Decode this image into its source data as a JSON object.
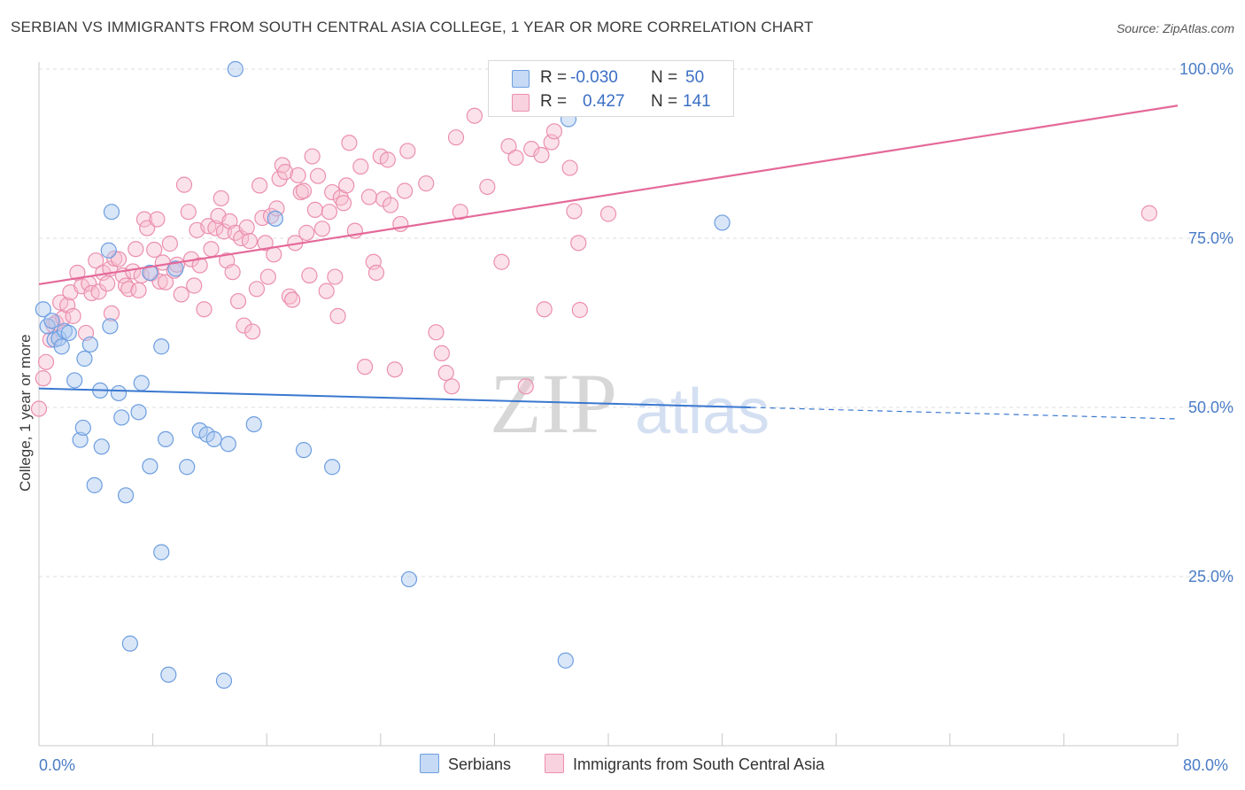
{
  "header": {
    "title": "SERBIAN VS IMMIGRANTS FROM SOUTH CENTRAL ASIA COLLEGE, 1 YEAR OR MORE CORRELATION CHART",
    "source": "Source: ZipAtlas.com"
  },
  "watermark": {
    "zip": "ZIP",
    "atlas": "atlas"
  },
  "legend_top": {
    "rows": [
      {
        "r_label": "R =",
        "r_value": "-0.030",
        "n_label": "N =",
        "n_value": "50"
      },
      {
        "r_label": "R =",
        "r_value": "0.427",
        "n_label": "N =",
        "n_value": "141"
      }
    ]
  },
  "legend_bottom": {
    "serbians": "Serbians",
    "immigrants": "Immigrants from South Central Asia"
  },
  "colors": {
    "blue_fill": "#aac8f0",
    "blue_stroke": "#6d9ee0",
    "blue_line": "#3a78d0",
    "pink_fill": "#f6bfd1",
    "pink_stroke": "#eb8fae",
    "pink_line": "#e4699a",
    "tick_text": "#4a7cc7",
    "grid": "#dcdcdc"
  },
  "chart_data": {
    "type": "scatter",
    "title": "SERBIAN VS IMMIGRANTS FROM SOUTH CENTRAL ASIA COLLEGE, 1 YEAR OR MORE CORRELATION CHART",
    "xlabel": "",
    "ylabel": "College, 1 year or more",
    "xlim": [
      0,
      80
    ],
    "ylim": [
      0,
      105
    ],
    "x_tick_labels": [
      "0.0%",
      "80.0%"
    ],
    "y_tick_labels": [
      "100.0%",
      "75.0%",
      "50.0%",
      "25.0%"
    ],
    "y_ticks": [
      100,
      75,
      50,
      25
    ],
    "grid": true,
    "legend_placement": "top-center",
    "series": [
      {
        "name": "Serbians",
        "r": -0.03,
        "n": 50,
        "trend": {
          "x_start": 0,
          "y_start": 52.8,
          "x_solid_end": 50,
          "y_solid_end": 50.0,
          "x_end": 80,
          "y_end": 48.3
        },
        "points": [
          [
            0.3,
            64.5
          ],
          [
            0.6,
            62.0
          ],
          [
            0.9,
            62.8
          ],
          [
            1.1,
            60.0
          ],
          [
            1.4,
            60.2
          ],
          [
            1.6,
            59.0
          ],
          [
            1.8,
            61.3
          ],
          [
            2.1,
            61.0
          ],
          [
            2.5,
            54.0
          ],
          [
            2.9,
            45.2
          ],
          [
            3.1,
            47.0
          ],
          [
            3.2,
            57.2
          ],
          [
            3.6,
            59.3
          ],
          [
            3.9,
            38.5
          ],
          [
            4.3,
            52.5
          ],
          [
            4.4,
            44.2
          ],
          [
            4.9,
            73.2
          ],
          [
            5.1,
            78.9
          ],
          [
            5.0,
            62.0
          ],
          [
            5.6,
            52.1
          ],
          [
            5.8,
            48.5
          ],
          [
            6.1,
            37.0
          ],
          [
            6.4,
            15.1
          ],
          [
            7.0,
            49.3
          ],
          [
            7.2,
            53.6
          ],
          [
            7.8,
            69.9
          ],
          [
            7.8,
            41.3
          ],
          [
            8.6,
            59.0
          ],
          [
            8.6,
            28.6
          ],
          [
            8.9,
            45.3
          ],
          [
            9.1,
            10.5
          ],
          [
            9.6,
            70.5
          ],
          [
            10.4,
            41.2
          ],
          [
            11.3,
            46.6
          ],
          [
            11.8,
            46.0
          ],
          [
            12.3,
            45.3
          ],
          [
            13.0,
            9.6
          ],
          [
            13.3,
            44.6
          ],
          [
            13.8,
            100.0
          ],
          [
            15.1,
            47.5
          ],
          [
            16.6,
            77.9
          ],
          [
            18.6,
            43.7
          ],
          [
            20.6,
            41.2
          ],
          [
            26.0,
            24.6
          ],
          [
            37.0,
            12.6
          ],
          [
            37.2,
            92.6
          ],
          [
            48.0,
            77.3
          ]
        ]
      },
      {
        "name": "Immigrants from South Central Asia",
        "r": 0.427,
        "n": 141,
        "trend": {
          "x_start": 0,
          "y_start": 68.2,
          "x_end": 80,
          "y_end": 94.6
        },
        "points": [
          [
            0.0,
            49.8
          ],
          [
            0.3,
            54.3
          ],
          [
            0.5,
            56.7
          ],
          [
            0.8,
            60.0
          ],
          [
            1.0,
            62.2
          ],
          [
            1.2,
            62.5
          ],
          [
            1.5,
            65.5
          ],
          [
            1.7,
            63.2
          ],
          [
            2.0,
            65.1
          ],
          [
            2.2,
            67.0
          ],
          [
            2.4,
            63.5
          ],
          [
            2.7,
            69.9
          ],
          [
            3.0,
            67.9
          ],
          [
            3.3,
            61.0
          ],
          [
            3.5,
            68.3
          ],
          [
            3.7,
            66.9
          ],
          [
            4.0,
            71.7
          ],
          [
            4.2,
            67.1
          ],
          [
            4.5,
            69.9
          ],
          [
            4.8,
            68.3
          ],
          [
            5.0,
            70.5
          ],
          [
            5.1,
            63.9
          ],
          [
            5.3,
            72.0
          ],
          [
            5.6,
            71.9
          ],
          [
            5.9,
            69.5
          ],
          [
            6.1,
            68.0
          ],
          [
            6.3,
            67.5
          ],
          [
            6.6,
            70.1
          ],
          [
            6.8,
            73.4
          ],
          [
            7.0,
            67.3
          ],
          [
            7.2,
            69.5
          ],
          [
            7.4,
            77.8
          ],
          [
            7.6,
            76.5
          ],
          [
            7.9,
            69.8
          ],
          [
            8.1,
            73.3
          ],
          [
            8.3,
            77.8
          ],
          [
            8.5,
            68.6
          ],
          [
            8.7,
            71.4
          ],
          [
            8.9,
            68.5
          ],
          [
            9.2,
            74.2
          ],
          [
            9.5,
            70.2
          ],
          [
            9.7,
            71.1
          ],
          [
            10.0,
            66.7
          ],
          [
            10.2,
            82.9
          ],
          [
            10.5,
            78.9
          ],
          [
            10.7,
            71.9
          ],
          [
            10.9,
            68.0
          ],
          [
            11.1,
            76.2
          ],
          [
            11.3,
            71.0
          ],
          [
            11.6,
            64.5
          ],
          [
            11.9,
            76.8
          ],
          [
            12.1,
            73.4
          ],
          [
            12.4,
            76.5
          ],
          [
            12.6,
            78.3
          ],
          [
            12.8,
            80.9
          ],
          [
            13.0,
            76.0
          ],
          [
            13.2,
            71.7
          ],
          [
            13.4,
            77.5
          ],
          [
            13.6,
            70.0
          ],
          [
            13.8,
            75.8
          ],
          [
            14.0,
            65.7
          ],
          [
            14.2,
            75.0
          ],
          [
            14.4,
            62.1
          ],
          [
            14.6,
            76.6
          ],
          [
            14.8,
            74.6
          ],
          [
            15.0,
            61.2
          ],
          [
            15.3,
            67.5
          ],
          [
            15.5,
            82.8
          ],
          [
            15.7,
            78.0
          ],
          [
            15.9,
            74.3
          ],
          [
            16.1,
            69.3
          ],
          [
            16.3,
            78.3
          ],
          [
            16.5,
            72.6
          ],
          [
            16.7,
            79.4
          ],
          [
            16.9,
            83.8
          ],
          [
            17.1,
            85.8
          ],
          [
            17.3,
            84.8
          ],
          [
            17.6,
            66.4
          ],
          [
            17.8,
            65.9
          ],
          [
            18.0,
            74.3
          ],
          [
            18.2,
            84.3
          ],
          [
            18.4,
            81.8
          ],
          [
            18.6,
            82.0
          ],
          [
            18.8,
            75.8
          ],
          [
            19.0,
            69.5
          ],
          [
            19.2,
            87.1
          ],
          [
            19.4,
            79.2
          ],
          [
            19.6,
            84.2
          ],
          [
            19.9,
            76.4
          ],
          [
            20.2,
            67.2
          ],
          [
            20.4,
            78.9
          ],
          [
            20.6,
            81.8
          ],
          [
            20.8,
            69.3
          ],
          [
            21.0,
            63.5
          ],
          [
            21.2,
            81.0
          ],
          [
            21.4,
            80.2
          ],
          [
            21.6,
            82.8
          ],
          [
            21.8,
            89.1
          ],
          [
            22.2,
            76.1
          ],
          [
            22.6,
            85.6
          ],
          [
            22.9,
            56.0
          ],
          [
            23.2,
            81.1
          ],
          [
            23.5,
            71.5
          ],
          [
            23.7,
            69.9
          ],
          [
            24.0,
            87.1
          ],
          [
            24.2,
            80.8
          ],
          [
            24.5,
            86.6
          ],
          [
            24.7,
            79.9
          ],
          [
            25.0,
            55.6
          ],
          [
            25.4,
            77.1
          ],
          [
            25.7,
            82.0
          ],
          [
            25.9,
            87.9
          ],
          [
            27.2,
            83.1
          ],
          [
            27.9,
            61.1
          ],
          [
            28.3,
            58.0
          ],
          [
            28.6,
            55.1
          ],
          [
            29.0,
            53.1
          ],
          [
            29.3,
            89.9
          ],
          [
            29.6,
            78.9
          ],
          [
            30.6,
            93.1
          ],
          [
            31.5,
            82.6
          ],
          [
            32.5,
            71.5
          ],
          [
            33.0,
            88.6
          ],
          [
            33.5,
            86.9
          ],
          [
            34.2,
            53.1
          ],
          [
            34.6,
            88.2
          ],
          [
            35.3,
            87.3
          ],
          [
            35.5,
            64.5
          ],
          [
            36.0,
            89.2
          ],
          [
            36.2,
            90.8
          ],
          [
            37.3,
            85.4
          ],
          [
            37.6,
            79.0
          ],
          [
            37.9,
            74.3
          ],
          [
            38.0,
            64.4
          ],
          [
            40.0,
            78.6
          ],
          [
            78.0,
            78.7
          ]
        ]
      }
    ]
  },
  "axes": {
    "y_label": "College, 1 year or more",
    "x_left": "0.0%",
    "x_right": "80.0%"
  }
}
